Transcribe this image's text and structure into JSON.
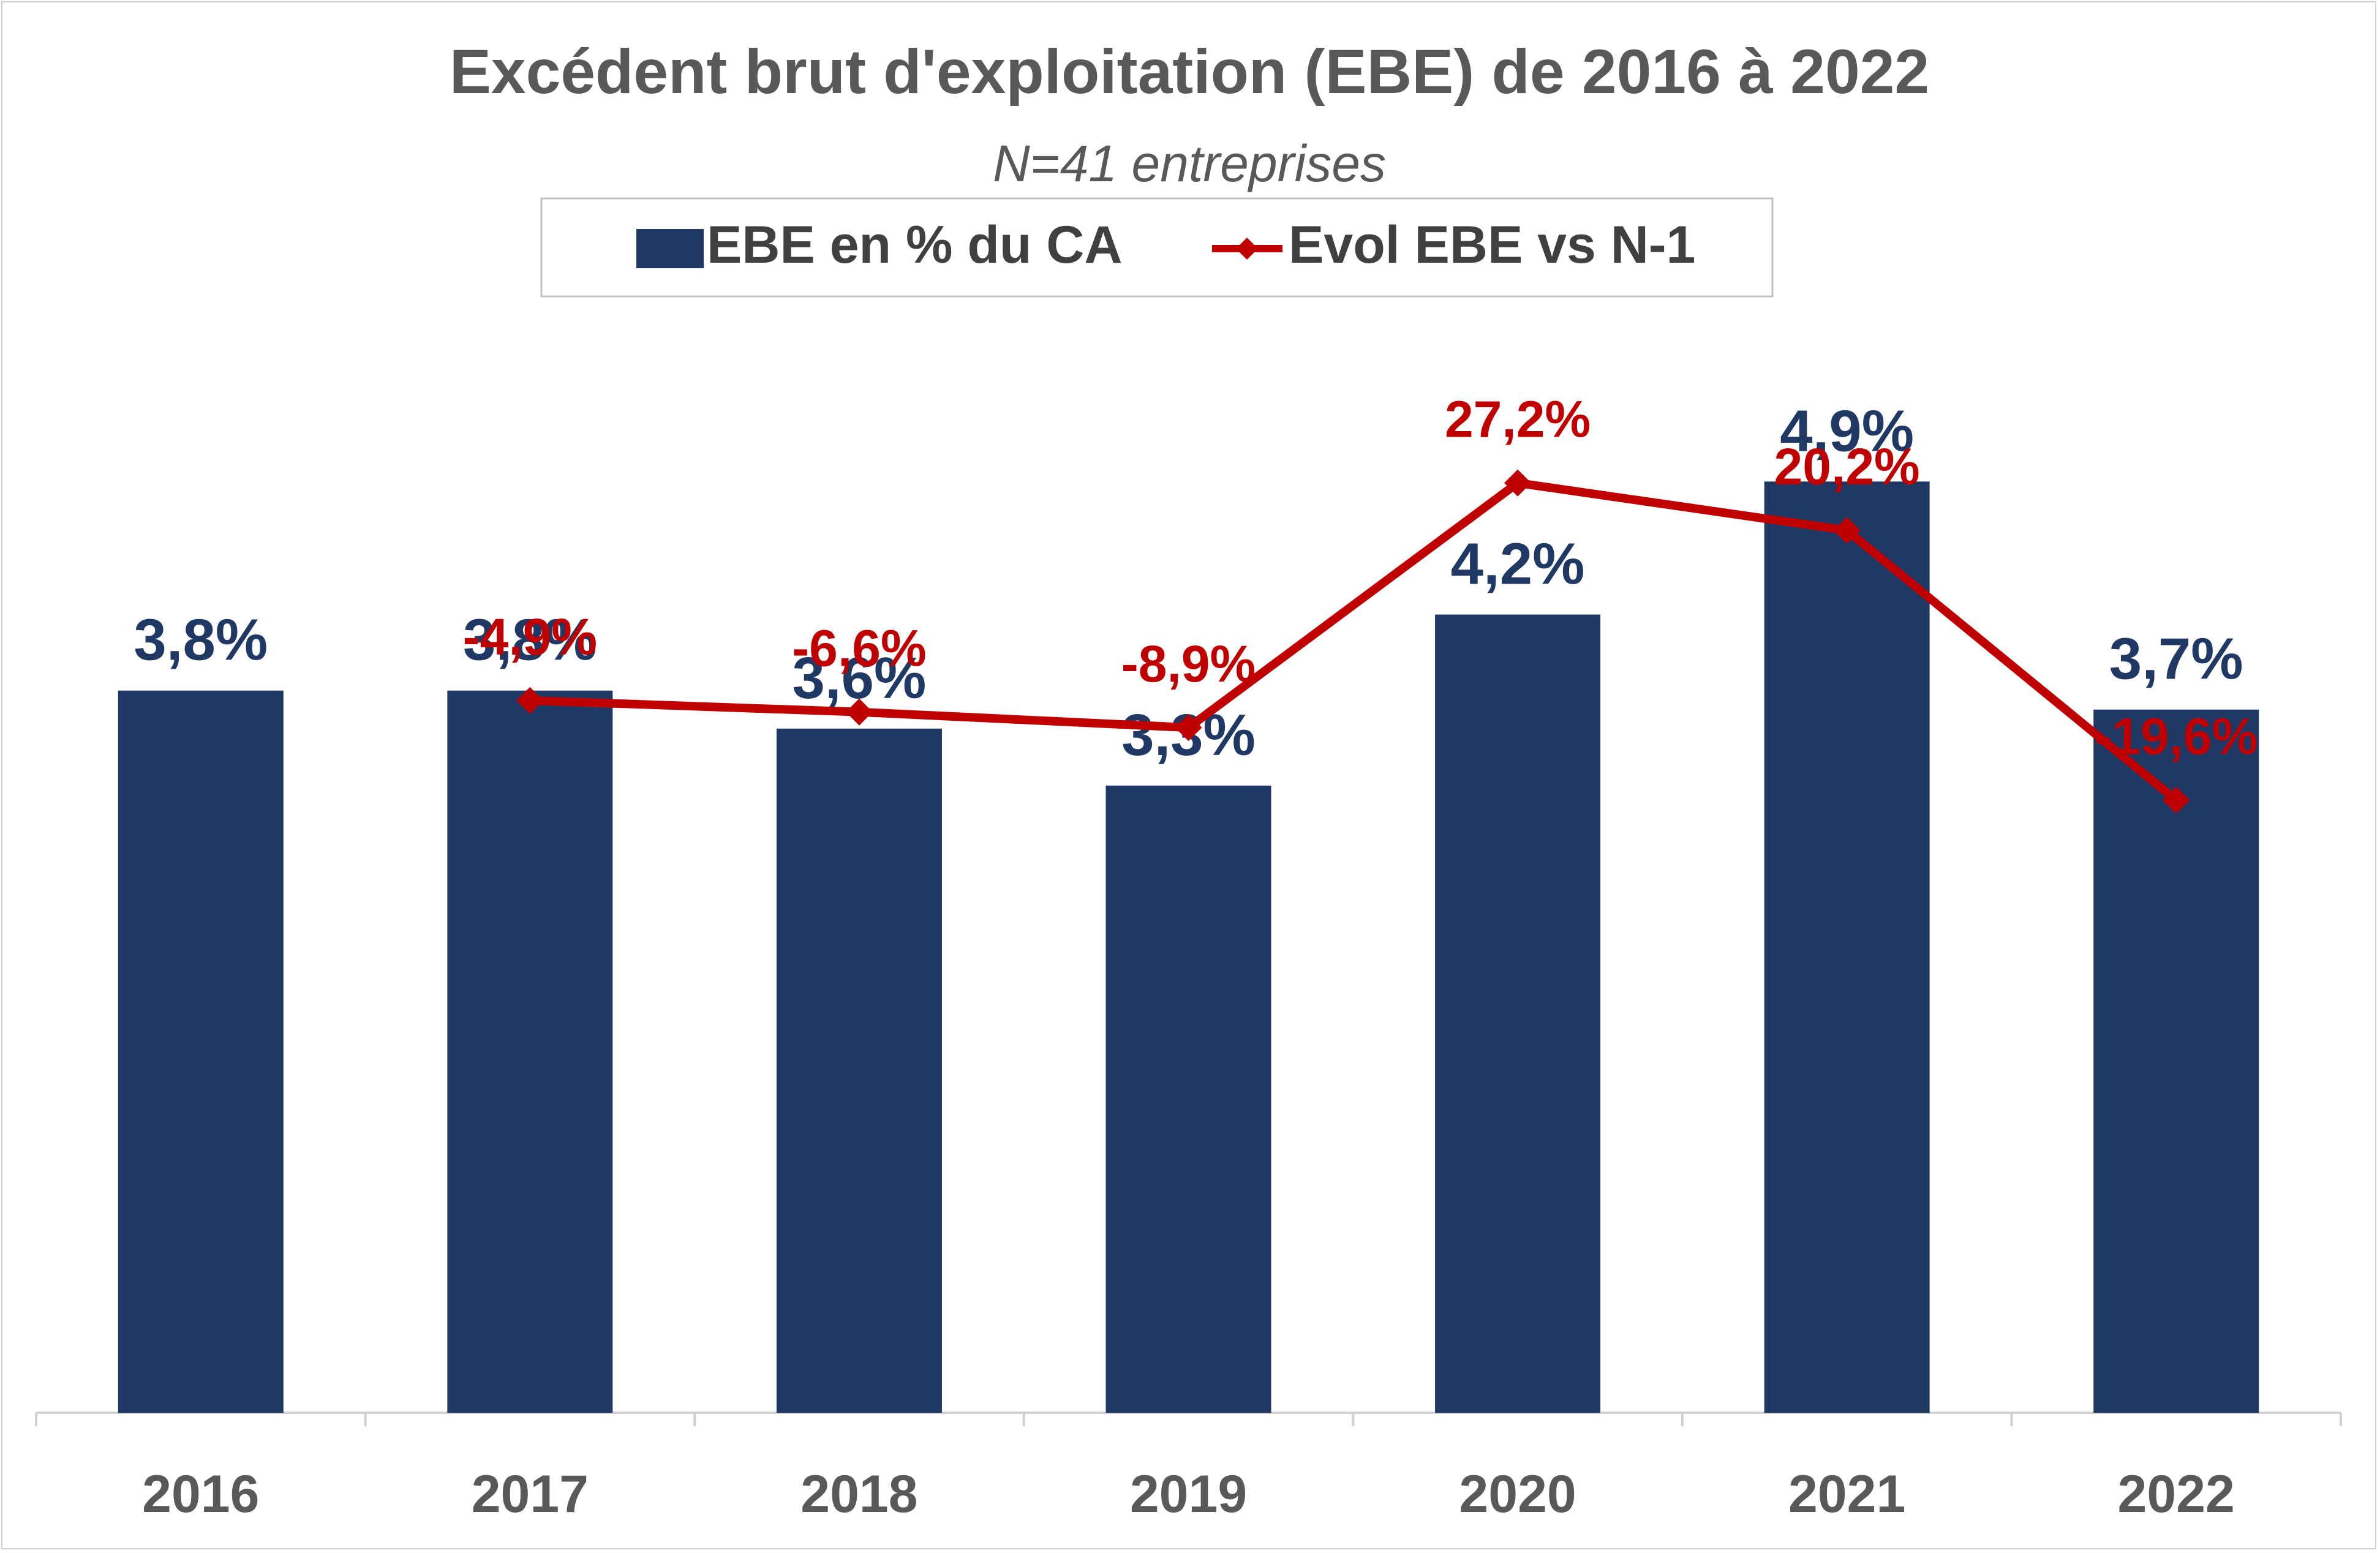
{
  "chart_data": {
    "type": "bar",
    "title": "Excédent brut d'exploitation (EBE) de 2016 à 2022",
    "subtitle": "N=41 entreprises",
    "categories": [
      "2016",
      "2017",
      "2018",
      "2019",
      "2020",
      "2021",
      "2022"
    ],
    "series": [
      {
        "name": "EBE en % du CA",
        "type": "bar",
        "color": "#203864",
        "values": [
          3.8,
          3.8,
          3.6,
          3.3,
          4.2,
          4.9,
          3.7
        ],
        "labels": [
          "3,8%",
          "3,8%",
          "3,6%",
          "3,3%",
          "4,2%",
          "4,9%",
          "3,7%"
        ]
      },
      {
        "name": "Evol EBE vs N-1",
        "type": "line",
        "marker": "diamond",
        "color": "#c00000",
        "values": [
          null,
          -4.9,
          -6.6,
          -8.9,
          27.2,
          20.2,
          -19.6
        ],
        "labels": [
          null,
          "-4,9%",
          "-6,6%",
          "-8,9%",
          "27,2%",
          "20,2%",
          "-19,6%"
        ]
      }
    ],
    "axes": {
      "bars": {
        "ylim": [
          0,
          5.8
        ]
      },
      "line": {
        "ylim": [
          -110,
          40
        ]
      }
    },
    "grid": false,
    "legend": "top"
  }
}
